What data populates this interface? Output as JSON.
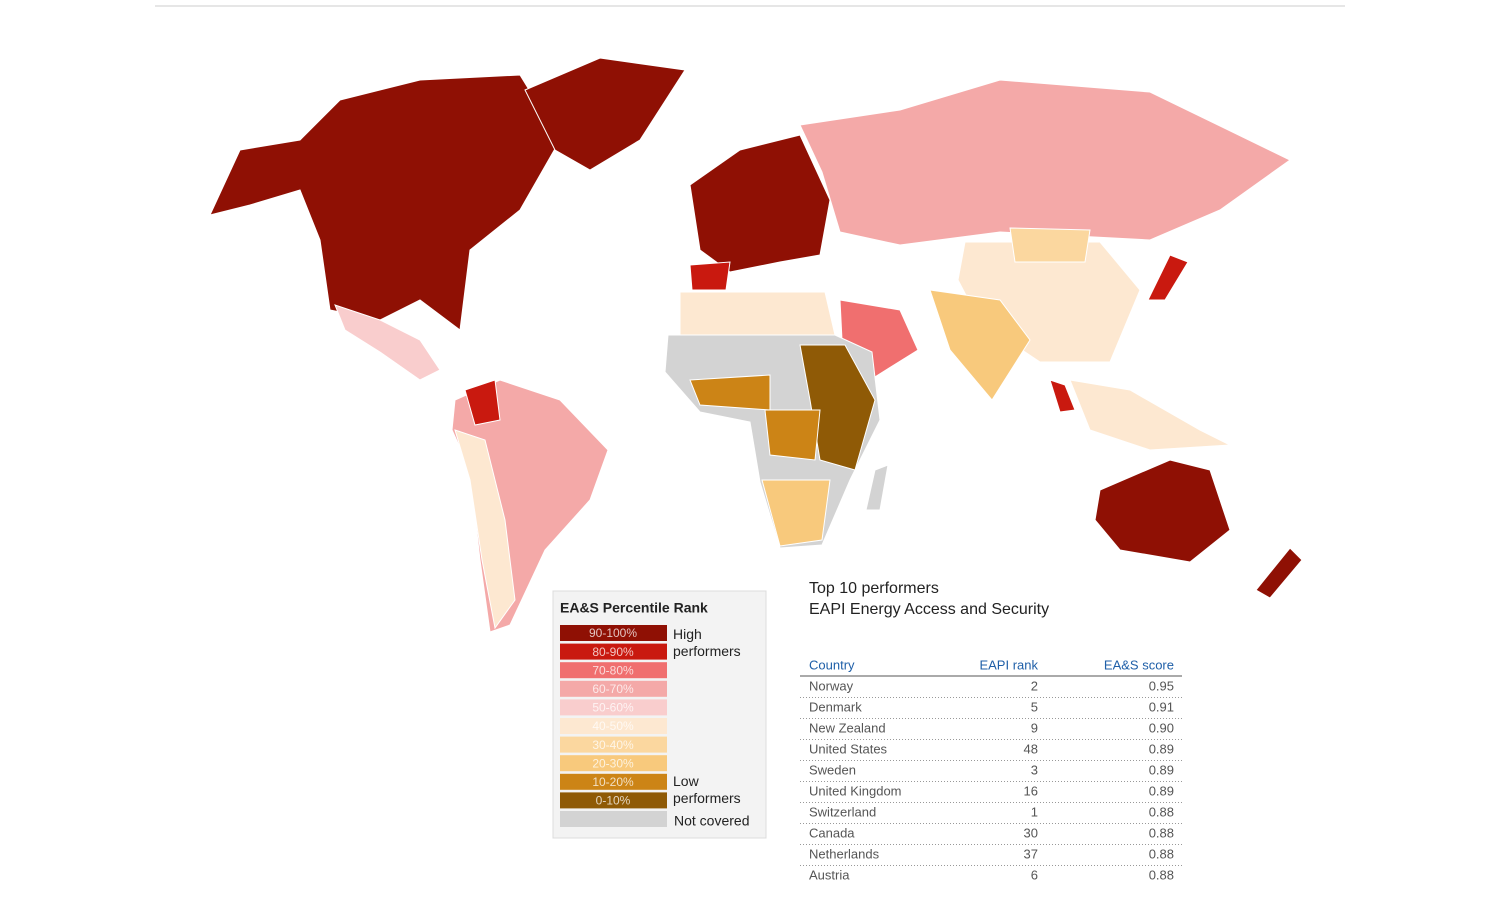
{
  "legend": {
    "title": "EA&S Percentile Rank",
    "items": [
      {
        "label": "90-100%",
        "color": "#8f1004"
      },
      {
        "label": "80-90%",
        "color": "#c9190f"
      },
      {
        "label": "70-80%",
        "color": "#f06f6f"
      },
      {
        "label": "60-70%",
        "color": "#f4a9a8"
      },
      {
        "label": "50-60%",
        "color": "#f9cdcd"
      },
      {
        "label": "40-50%",
        "color": "#fde8d1"
      },
      {
        "label": "30-40%",
        "color": "#fbd79f"
      },
      {
        "label": "20-30%",
        "color": "#f8c97c"
      },
      {
        "label": "10-20%",
        "color": "#cc8416"
      },
      {
        "label": "0-10%",
        "color": "#8f5a06"
      }
    ],
    "high": "High performers",
    "low": "Low performers",
    "not_covered": {
      "label": "Not covered",
      "color": "#d3d3d3"
    }
  },
  "table": {
    "title": "Top 10 performers",
    "subtitle": "EAPI Energy Access and Security",
    "headers": [
      "Country",
      "EAPI rank",
      "EA&S score"
    ],
    "rows": [
      [
        "Norway",
        "2",
        "0.95"
      ],
      [
        "Denmark",
        "5",
        "0.91"
      ],
      [
        "New Zealand",
        "9",
        "0.90"
      ],
      [
        "United States",
        "48",
        "0.89"
      ],
      [
        "Sweden",
        "3",
        "0.89"
      ],
      [
        "United Kingdom",
        "16",
        "0.89"
      ],
      [
        "Switzerland",
        "1",
        "0.88"
      ],
      [
        "Canada",
        "30",
        "0.88"
      ],
      [
        "Netherlands",
        "37",
        "0.88"
      ],
      [
        "Austria",
        "6",
        "0.88"
      ]
    ]
  }
}
